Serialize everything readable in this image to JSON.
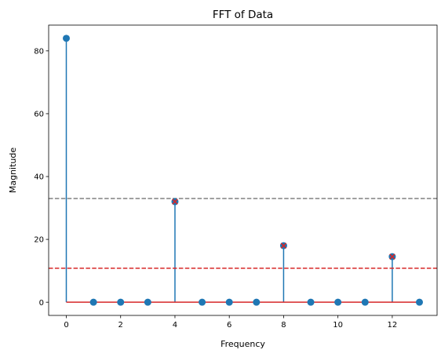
{
  "chart_data": {
    "type": "stem",
    "title": "FFT of Data",
    "xlabel": "Frequency",
    "ylabel": "Magnitude",
    "xlim": [
      -0.65,
      13.65
    ],
    "ylim": [
      -4.2,
      88.2
    ],
    "xticks": [
      0,
      2,
      4,
      6,
      8,
      10,
      12
    ],
    "yticks": [
      0,
      20,
      40,
      60,
      80
    ],
    "grid": false,
    "x": [
      0,
      1,
      2,
      3,
      4,
      5,
      6,
      7,
      8,
      9,
      10,
      11,
      12,
      13
    ],
    "y": [
      84,
      0,
      0,
      0,
      32,
      0,
      0,
      0,
      18,
      0,
      0,
      0,
      14.5,
      0
    ],
    "highlighted_x": [
      4,
      8,
      12
    ],
    "baseline": 0,
    "hlines": [
      {
        "y": 33,
        "color": "#808080",
        "style": "dashed"
      },
      {
        "y": 10.8,
        "color": "#d62728",
        "style": "dashed"
      }
    ],
    "colors": {
      "stem": "#1f77b4",
      "marker": "#1f77b4",
      "baseline": "#d62728",
      "highlight": "#d62728"
    }
  }
}
